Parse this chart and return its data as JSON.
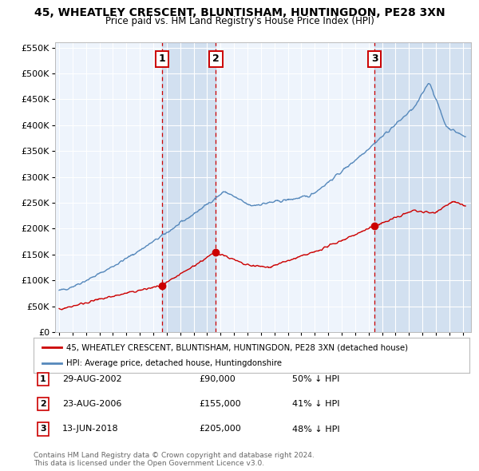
{
  "title": "45, WHEATLEY CRESCENT, BLUNTISHAM, HUNTINGDON, PE28 3XN",
  "subtitle": "Price paid vs. HM Land Registry's House Price Index (HPI)",
  "legend_line1": "45, WHEATLEY CRESCENT, BLUNTISHAM, HUNTINGDON, PE28 3XN (detached house)",
  "legend_line2": "HPI: Average price, detached house, Huntingdonshire",
  "footer1": "Contains HM Land Registry data © Crown copyright and database right 2024.",
  "footer2": "This data is licensed under the Open Government Licence v3.0.",
  "sales": [
    {
      "num": 1,
      "date": "29-AUG-2002",
      "price": 90000,
      "note": "50% ↓ HPI",
      "year": 2002.66
    },
    {
      "num": 2,
      "date": "23-AUG-2006",
      "price": 155000,
      "note": "41% ↓ HPI",
      "year": 2006.65
    },
    {
      "num": 3,
      "date": "13-JUN-2018",
      "price": 205000,
      "note": "48% ↓ HPI",
      "year": 2018.45
    }
  ],
  "ylim": [
    0,
    560000
  ],
  "xlim_start": 1994.7,
  "xlim_end": 2025.6,
  "red_color": "#cc0000",
  "blue_color": "#5588bb",
  "blue_fill": "#d8e8f5",
  "plot_bg": "#eef4fc",
  "grid_color": "#ffffff",
  "yticks": [
    0,
    50000,
    100000,
    150000,
    200000,
    250000,
    300000,
    350000,
    400000,
    450000,
    500000,
    550000
  ],
  "ytick_labels": [
    "£0",
    "£50K",
    "£100K",
    "£150K",
    "£200K",
    "£250K",
    "£300K",
    "£350K",
    "£400K",
    "£450K",
    "£500K",
    "£550K"
  ]
}
